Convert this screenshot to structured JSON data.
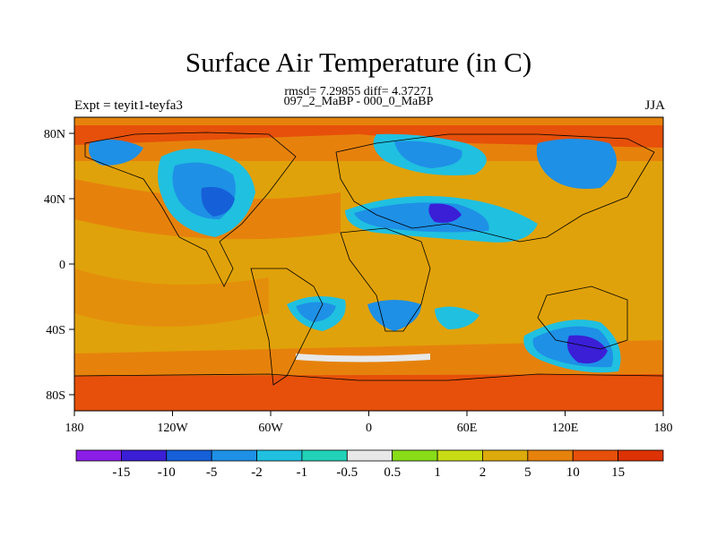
{
  "title": "Surface Air Temperature (in C)",
  "stats_line": "rmsd= 7.29855 diff= 4.37271",
  "comparison": "097_2_MaBP - 000_0_MaBP",
  "experiment": "Expt = teyit1-teyfa3",
  "season": "JJA",
  "x_ticks": [
    "180",
    "120W",
    "60W",
    "0",
    "60E",
    "120E",
    "180"
  ],
  "y_ticks": [
    "80N",
    "40N",
    "0",
    "40S",
    "80S"
  ],
  "colorbar": {
    "labels": [
      "-15",
      "-10",
      "-5",
      "-2",
      "-1",
      "-0.5",
      "0.5",
      "1",
      "2",
      "5",
      "10",
      "15"
    ],
    "colors": [
      "#8a1ee6",
      "#3a1fd6",
      "#1560d8",
      "#1e90e6",
      "#20c0e0",
      "#22d2b8",
      "#e8e8e8",
      "#88dc18",
      "#c8dc16",
      "#dcaa0a",
      "#e6820c",
      "#e6500a",
      "#dc3204"
    ]
  },
  "map_colors": {
    "ocean_base": "#e0a20a",
    "warm": "#e6820c",
    "hot": "#e6500a",
    "cold_light": "#20c0e0",
    "cold": "#1e90e6",
    "colder": "#1560d8",
    "coldest": "#3a1fd6",
    "neutral": "#e8e8e8",
    "green": "#88dc18"
  }
}
